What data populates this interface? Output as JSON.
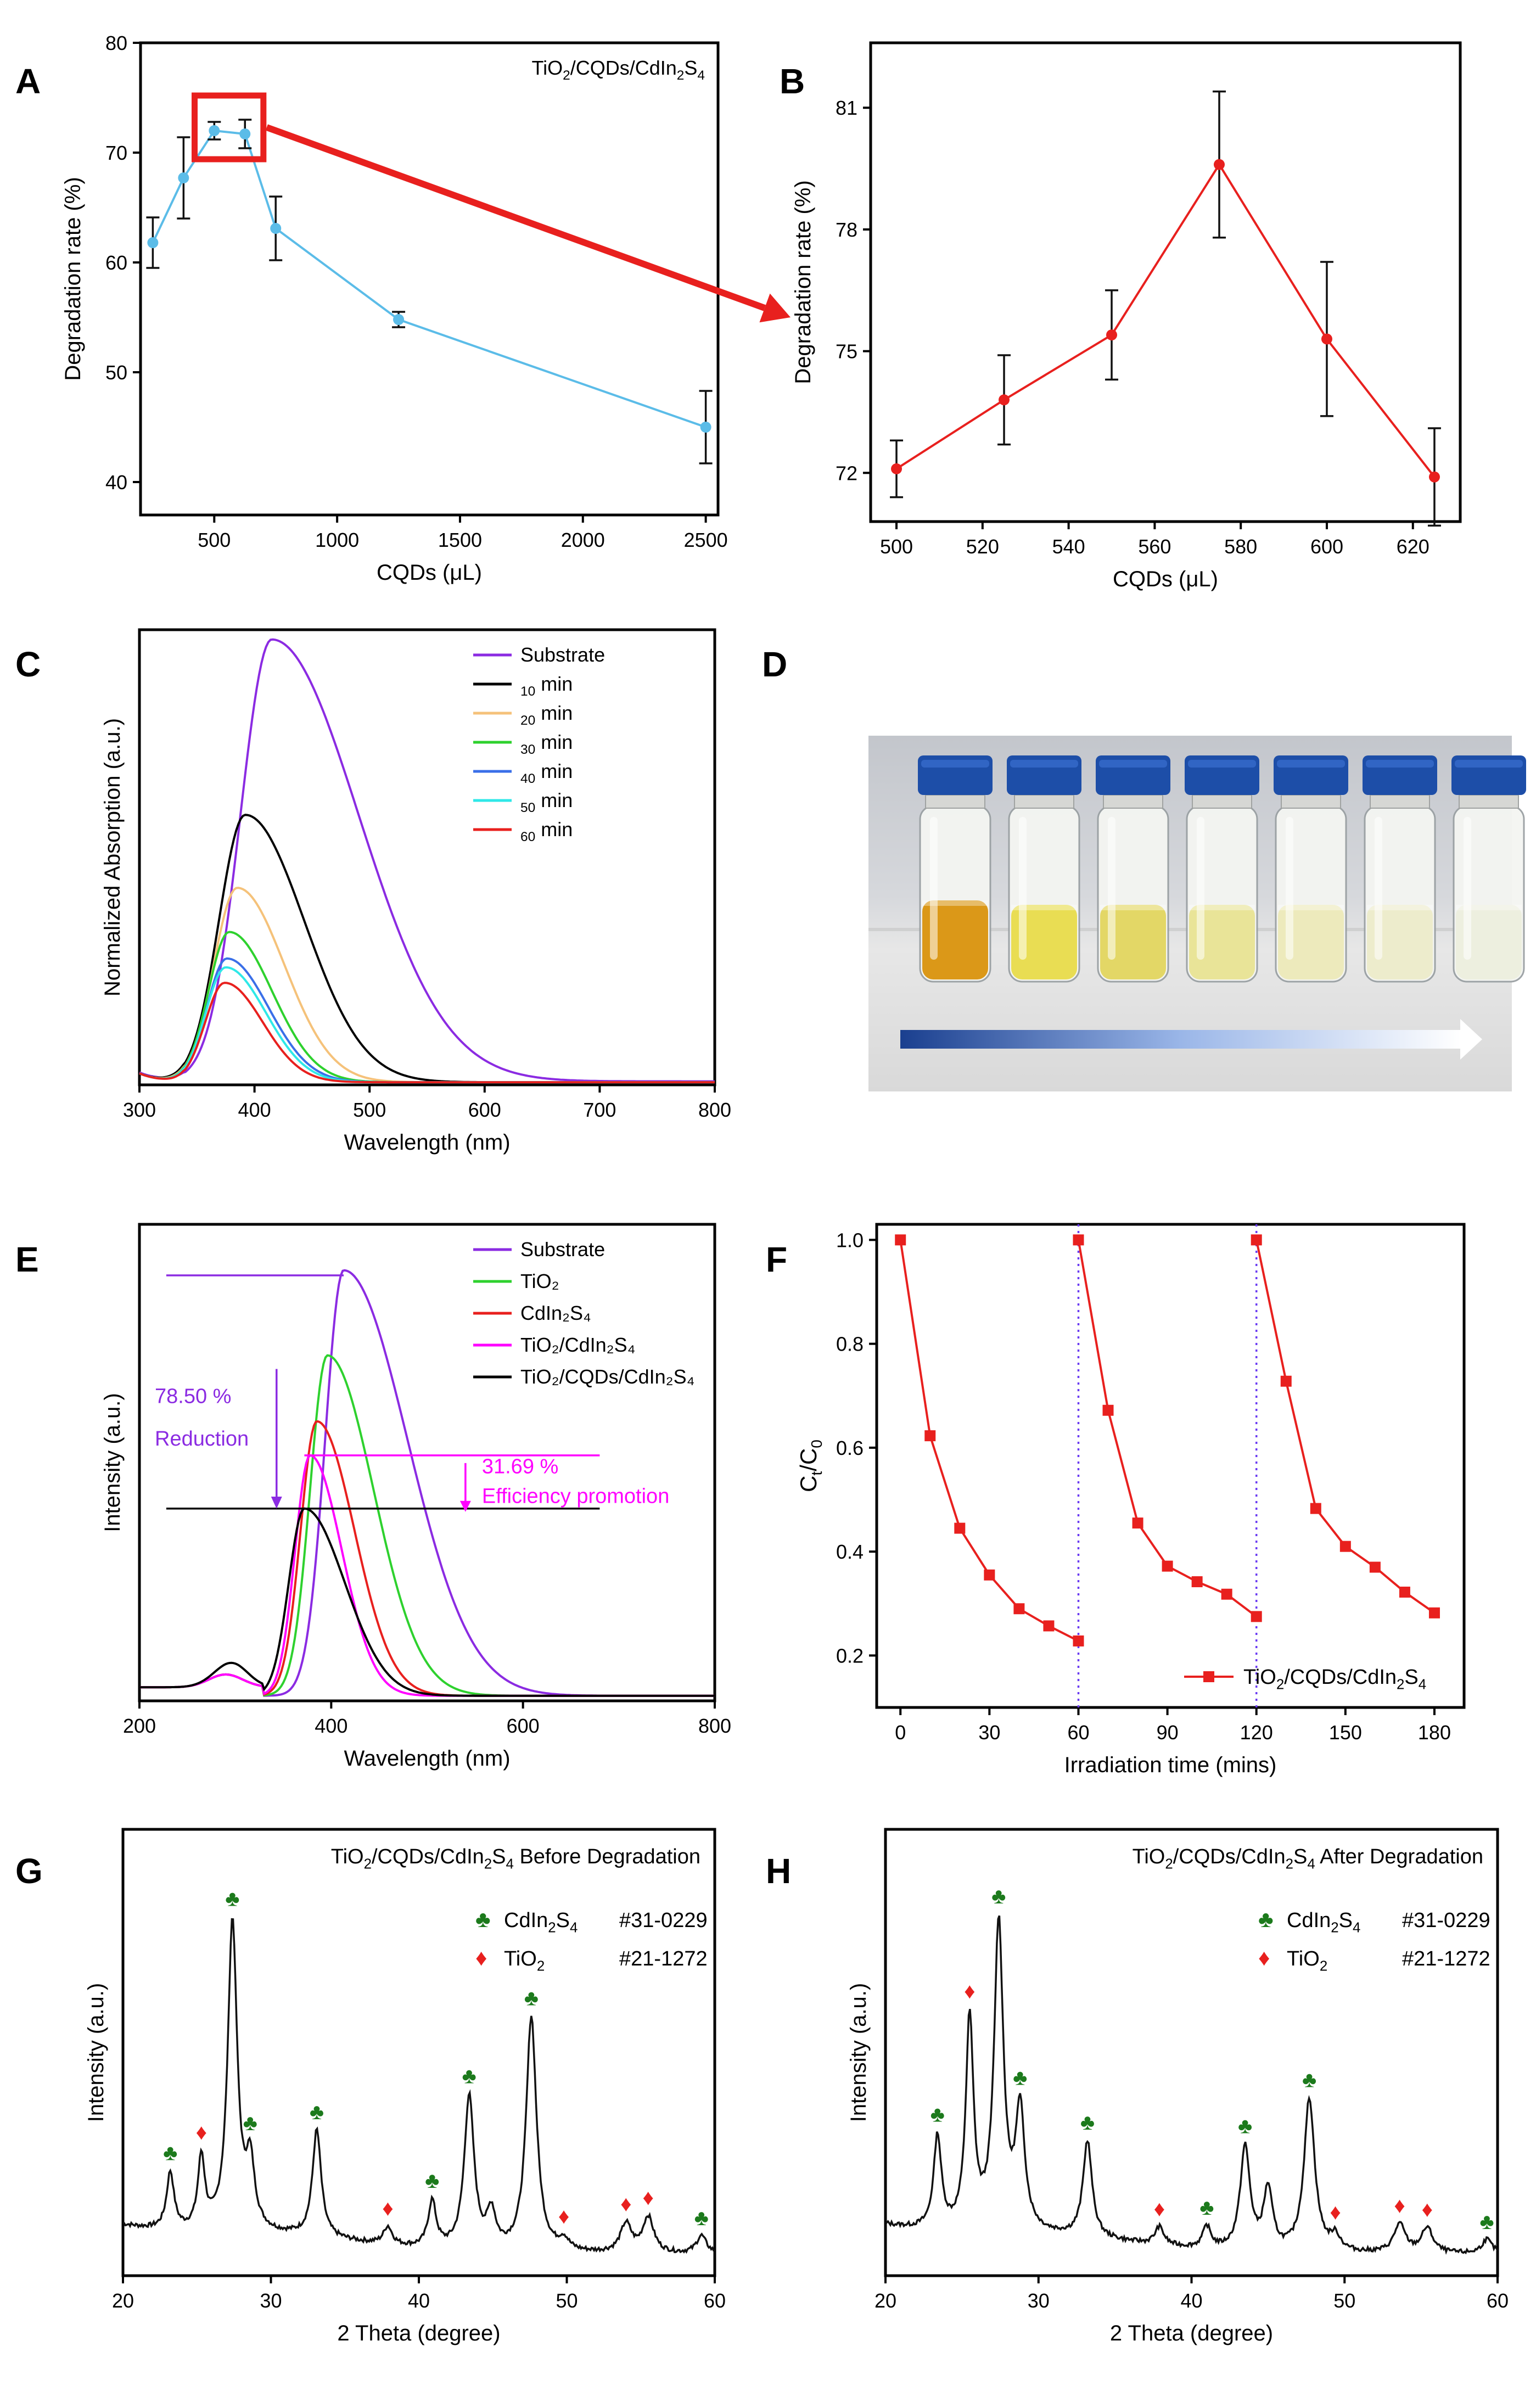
{
  "panels": [
    {
      "id": "A",
      "type": "line",
      "letter": "A",
      "box": "A",
      "title": "TiO2/CQDs/CdIn2S4",
      "xlabel": "CQDs (μL)",
      "ylabel": "Degradation rate (%)",
      "xlim": [
        200,
        2550
      ],
      "ylim": [
        37,
        80
      ],
      "xticks": [
        500,
        1000,
        1500,
        2000,
        2500
      ],
      "yticks": [
        40,
        50,
        60,
        70,
        80
      ],
      "color": "#5bbce8",
      "series": [
        {
          "name": "TiO2/CQDs/CdIn2S4",
          "x": [
            250,
            375,
            500,
            625,
            750,
            1250,
            2500
          ],
          "y": [
            61.8,
            67.7,
            72.0,
            71.7,
            63.1,
            54.8,
            45.0
          ],
          "err": [
            2.3,
            3.7,
            0.8,
            1.3,
            2.9,
            0.7,
            3.3
          ]
        }
      ]
    },
    {
      "id": "B",
      "type": "line",
      "letter": "B",
      "box": "B",
      "title": "",
      "xlabel": "CQDs (μL)",
      "ylabel": "Degradation rate (%)",
      "xlim": [
        494,
        631
      ],
      "ylim": [
        70.8,
        82.6
      ],
      "xticks": [
        500,
        520,
        540,
        560,
        580,
        600,
        620
      ],
      "yticks": [
        72,
        75,
        78,
        81
      ],
      "color": "#e8201e",
      "series": [
        {
          "name": "TiO2/CQDs/CdIn2S4",
          "x": [
            500,
            525,
            550,
            575,
            600,
            625
          ],
          "y": [
            72.1,
            73.8,
            75.4,
            79.6,
            75.3,
            71.9
          ],
          "err": [
            0.7,
            1.1,
            1.1,
            1.8,
            1.9,
            1.2
          ]
        }
      ]
    },
    {
      "id": "C",
      "type": "line",
      "letter": "C",
      "box": "C",
      "title": "",
      "xlabel": "Wavelength (nm)",
      "ylabel": "Normalized Absorption (a.u.)",
      "xlim": [
        300,
        800
      ],
      "ylim": [
        0,
        1.03
      ],
      "xticks": [
        300,
        400,
        500,
        600,
        700,
        800
      ],
      "yticks": [],
      "legend": "top-right",
      "series": [
        {
          "name": "Substrate",
          "color": "#8b2be2",
          "peak": 415,
          "height": 1.0,
          "wl": 45,
          "wr": 125,
          "base": 0.008
        },
        {
          "name": "10 min",
          "color": "#000000",
          "peak": 392,
          "height": 0.605,
          "wl": 38,
          "wr": 85,
          "base": 0.006
        },
        {
          "name": "20 min",
          "color": "#f5c27a",
          "peak": 385,
          "height": 0.44,
          "wl": 34,
          "wr": 68,
          "base": 0.006
        },
        {
          "name": "30 min",
          "color": "#2ed12e",
          "peak": 378,
          "height": 0.34,
          "wl": 30,
          "wr": 62,
          "base": 0.006
        },
        {
          "name": "40 min",
          "color": "#3a6fe8",
          "peak": 376,
          "height": 0.28,
          "wl": 29,
          "wr": 60,
          "base": 0.006
        },
        {
          "name": "50 min",
          "color": "#2fe8e8",
          "peak": 375,
          "height": 0.26,
          "wl": 29,
          "wr": 58,
          "base": 0.006
        },
        {
          "name": "60 min",
          "color": "#e8201e",
          "peak": 374,
          "height": 0.225,
          "wl": 28,
          "wr": 55,
          "base": 0.006
        }
      ]
    },
    {
      "id": "E",
      "type": "line",
      "letter": "E",
      "box": "E",
      "title": "",
      "xlabel": "Wavelength (nm)",
      "ylabel": "Intensity (a.u.)",
      "xlim": [
        200,
        800
      ],
      "ylim": [
        0,
        1.12
      ],
      "xticks": [
        200,
        400,
        600,
        800
      ],
      "yticks": [],
      "legend": "top-right",
      "series": [
        {
          "name": "Substrate",
          "color": "#8b2be2",
          "peak": 413,
          "height": 1.0,
          "wl": 32,
          "wr": 110
        },
        {
          "name": "TiO₂",
          "color": "#2ed12e",
          "peak": 396,
          "height": 0.8,
          "wl": 30,
          "wr": 80
        },
        {
          "name": "CdIn₂S₄",
          "color": "#e8201e",
          "peak": 385,
          "height": 0.645,
          "wl": 28,
          "wr": 65
        },
        {
          "name": "TiO₂/CdIn₂S₄",
          "color": "#ff00ff",
          "peak": 378,
          "height": 0.565,
          "wl": 26,
          "wr": 55
        },
        {
          "name": "TiO₂/CQDs/CdIn₂S₄",
          "color": "#000000",
          "peak": 372,
          "height": 0.44,
          "wl": 27,
          "wr": 70
        }
      ],
      "annotations": {
        "reduction_value": "78.50 %",
        "reduction_label": "Reduction",
        "promotion_value": "31.69 %",
        "promotion_label": "Efficiency promotion",
        "reduction_color": "#8b2be2",
        "promotion_color": "#ff00ff"
      }
    },
    {
      "id": "F",
      "type": "line",
      "letter": "F",
      "box": "F",
      "title": "",
      "xlabel": "Irradiation time (mins)",
      "ylabel": "Ct/C0",
      "xlim": [
        -8,
        190
      ],
      "ylim": [
        0.1,
        1.03
      ],
      "xticks": [
        0,
        30,
        60,
        90,
        120,
        150,
        180
      ],
      "yticks": [
        0.2,
        0.4,
        0.6,
        0.8,
        1.0
      ],
      "color": "#e8201e",
      "vlines": [
        60,
        120
      ],
      "legend": "bottom-right",
      "series": [
        {
          "name": "TiO2/CQDs/CdIn2S4",
          "x": [
            0,
            10,
            20,
            30,
            40,
            50,
            60
          ],
          "y": [
            1.0,
            0.623,
            0.445,
            0.355,
            0.29,
            0.257,
            0.228
          ]
        },
        {
          "name": "",
          "x": [
            60,
            70,
            80,
            90,
            100,
            110,
            120
          ],
          "y": [
            1.0,
            0.672,
            0.455,
            0.372,
            0.342,
            0.318,
            0.275
          ]
        },
        {
          "name": "",
          "x": [
            120,
            130,
            140,
            150,
            160,
            170,
            180
          ],
          "y": [
            1.0,
            0.728,
            0.483,
            0.41,
            0.37,
            0.322,
            0.282
          ]
        }
      ]
    },
    {
      "id": "G",
      "type": "line",
      "letter": "G",
      "box": "G",
      "title": "TiO2/CQDs/CdIn2S4 Before Degradation",
      "xlabel": "2 Theta (degree)",
      "ylabel": "Intensity (a.u.)",
      "xlim": [
        20,
        60
      ],
      "ylim": [
        0,
        1.25
      ],
      "xticks": [
        20,
        30,
        40,
        50,
        60
      ],
      "yticks": [],
      "legend_entries": [
        {
          "symbol": "♣",
          "color": "#1c7a1c",
          "phase": "CdIn2S4",
          "card": "#31-0229"
        },
        {
          "symbol": "♦",
          "color": "#e8201e",
          "phase": "TiO2",
          "card": "#21-1272"
        }
      ],
      "peaks": [
        {
          "x": 23.2,
          "h": 0.16,
          "w": 0.3,
          "m": "c"
        },
        {
          "x": 25.3,
          "h": 0.2,
          "w": 0.28,
          "m": "t"
        },
        {
          "x": 27.4,
          "h": 0.87,
          "w": 0.38,
          "m": "c"
        },
        {
          "x": 28.6,
          "h": 0.18,
          "w": 0.35,
          "m": "c"
        },
        {
          "x": 33.1,
          "h": 0.3,
          "w": 0.35,
          "m": "c"
        },
        {
          "x": 37.9,
          "h": 0.05,
          "w": 0.35,
          "m": "t"
        },
        {
          "x": 40.9,
          "h": 0.13,
          "w": 0.32,
          "m": "c"
        },
        {
          "x": 43.4,
          "h": 0.43,
          "w": 0.4,
          "m": "c"
        },
        {
          "x": 44.9,
          "h": 0.1,
          "w": 0.35,
          "m": ""
        },
        {
          "x": 47.6,
          "h": 0.66,
          "w": 0.42,
          "m": "c"
        },
        {
          "x": 49.8,
          "h": 0.03,
          "w": 0.4,
          "m": "t"
        },
        {
          "x": 54.0,
          "h": 0.08,
          "w": 0.45,
          "m": "t"
        },
        {
          "x": 55.5,
          "h": 0.1,
          "w": 0.45,
          "m": "t"
        },
        {
          "x": 59.1,
          "h": 0.05,
          "w": 0.4,
          "m": "c"
        }
      ]
    },
    {
      "id": "H",
      "type": "line",
      "letter": "H",
      "box": "H",
      "title": "TiO2/CQDs/CdIn2S4 After Degradation",
      "xlabel": "2 Theta (degree)",
      "ylabel": "Intensity (a.u.)",
      "xlim": [
        20,
        60
      ],
      "ylim": [
        0,
        1.25
      ],
      "xticks": [
        20,
        30,
        40,
        50,
        60
      ],
      "yticks": [],
      "legend_entries": [
        {
          "symbol": "♣",
          "color": "#1c7a1c",
          "phase": "CdIn2S4",
          "card": "#31-0229"
        },
        {
          "symbol": "♦",
          "color": "#e8201e",
          "phase": "TiO2",
          "card": "#21-1272"
        }
      ],
      "peaks": [
        {
          "x": 23.4,
          "h": 0.26,
          "w": 0.3,
          "m": "c"
        },
        {
          "x": 25.5,
          "h": 0.59,
          "w": 0.3,
          "m": "t"
        },
        {
          "x": 27.4,
          "h": 0.86,
          "w": 0.36,
          "m": "c"
        },
        {
          "x": 28.8,
          "h": 0.33,
          "w": 0.36,
          "m": "c"
        },
        {
          "x": 33.2,
          "h": 0.27,
          "w": 0.35,
          "m": "c"
        },
        {
          "x": 37.9,
          "h": 0.05,
          "w": 0.35,
          "m": "t"
        },
        {
          "x": 41.0,
          "h": 0.06,
          "w": 0.32,
          "m": "c"
        },
        {
          "x": 43.5,
          "h": 0.29,
          "w": 0.38,
          "m": "c"
        },
        {
          "x": 45.0,
          "h": 0.17,
          "w": 0.35,
          "m": ""
        },
        {
          "x": 47.7,
          "h": 0.43,
          "w": 0.42,
          "m": "c"
        },
        {
          "x": 49.4,
          "h": 0.04,
          "w": 0.4,
          "m": "t"
        },
        {
          "x": 53.6,
          "h": 0.08,
          "w": 0.45,
          "m": "t"
        },
        {
          "x": 55.4,
          "h": 0.07,
          "w": 0.45,
          "m": "t"
        },
        {
          "x": 59.3,
          "h": 0.04,
          "w": 0.4,
          "m": "c"
        }
      ]
    }
  ],
  "photo": {
    "letter": "D",
    "vials": 7,
    "liquid_colors": [
      "#d9920c",
      "#e8db4a",
      "#e2d55e",
      "#e8e392",
      "#ece9b8",
      "#ecebc9",
      "#eceedd"
    ],
    "cap_color": "#1d4ea8",
    "gradient_from": "#1a3f8f",
    "gradient_to": "#ffffff"
  },
  "zoom": {
    "arrow_color": "#e8201e"
  }
}
